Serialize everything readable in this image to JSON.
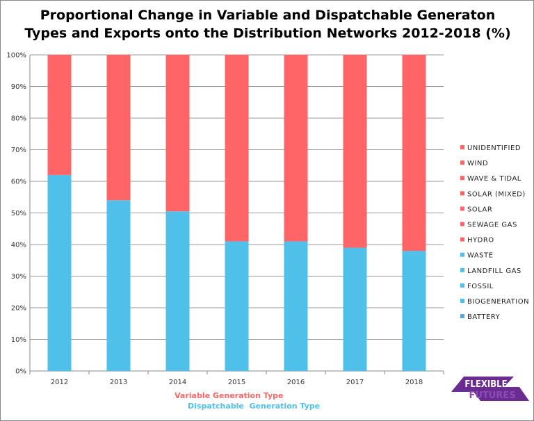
{
  "chart_data": {
    "type": "bar",
    "stacked": true,
    "title_lines": [
      "Proportional Change in Variable and Dispatchable Generaton",
      "Types and Exports onto the Distribution Networks 2012-2018 (%)"
    ],
    "categories": [
      "2012",
      "2013",
      "2014",
      "2015",
      "2016",
      "2017",
      "2018"
    ],
    "series": [
      {
        "name": "Dispatchable  Generation Type",
        "color": "#4fc0ea",
        "values": [
          62,
          54,
          50.5,
          41,
          41,
          39,
          38
        ]
      },
      {
        "name": "Variable Generation Type",
        "color": "#ff6466",
        "values": [
          38,
          46,
          49.5,
          59,
          59,
          61,
          62
        ]
      }
    ],
    "ylim": [
      0,
      100
    ],
    "yticks": [
      "0%",
      "10%",
      "20%",
      "30%",
      "40%",
      "50%",
      "60%",
      "70%",
      "80%",
      "90%",
      "100%"
    ],
    "grid": true,
    "legend_position": "right",
    "legend": [
      {
        "label": "UNIDENTIFIED",
        "color": "#ff6466"
      },
      {
        "label": "WIND",
        "color": "#ff6466"
      },
      {
        "label": "WAVE & TIDAL",
        "color": "#ff6466"
      },
      {
        "label": "SOLAR (MIXED)",
        "color": "#ff6466"
      },
      {
        "label": "SOLAR",
        "color": "#ff6466"
      },
      {
        "label": "SEWAGE GAS",
        "color": "#ff6466"
      },
      {
        "label": "HYDRO",
        "color": "#ff6466"
      },
      {
        "label": "WASTE",
        "color": "#4fc0ea"
      },
      {
        "label": "LANDFILL GAS",
        "color": "#4fc0ea"
      },
      {
        "label": "FOSSIL",
        "color": "#4fc0ea"
      },
      {
        "label": "BIOGENERATION",
        "color": "#4fc0ea"
      },
      {
        "label": "BATTERY",
        "color": "#5aa6d6"
      }
    ],
    "xlabel_lines": [
      {
        "text": "Variable Generation Type",
        "color": "#ff6466"
      },
      {
        "text": "Dispatchable  Generation Type",
        "color": "#4fc0ea"
      }
    ]
  },
  "logo": {
    "line1": "FLEXIBLE",
    "line2": "FUTURES",
    "color": "#6a2c91"
  }
}
